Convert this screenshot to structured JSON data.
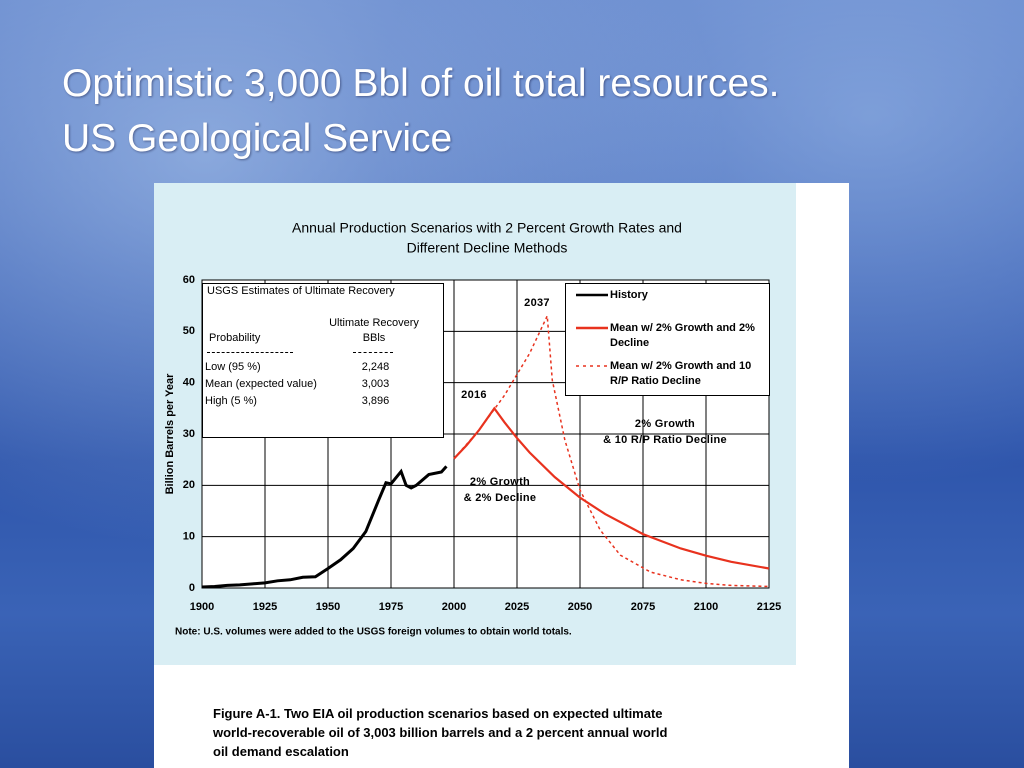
{
  "slide": {
    "title": [
      "Optimistic 3,000 Bbl of oil total resources.",
      "US Geological Service"
    ],
    "caption": [
      "Figure A-1.  Two EIA oil production scenarios based on expected ultimate",
      "world-recoverable oil of 3,003 billion barrels and a 2 percent annual world",
      "oil demand escalation"
    ]
  },
  "chart_data": {
    "type": "line",
    "title": [
      "Annual Production Scenarios with 2 Percent Growth Rates and",
      "Different Decline Methods"
    ],
    "y_label": "Billion Barrels per Year",
    "note": "Note:  U.S. volumes were added to the USGS foreign volumes to obtain world totals.",
    "xlim": [
      1900,
      2125
    ],
    "xticks": [
      1900,
      1925,
      1950,
      1975,
      2000,
      2025,
      2050,
      2075,
      2100,
      2125
    ],
    "ylim": [
      0,
      60
    ],
    "yticks": [
      0,
      10,
      20,
      30,
      40,
      50,
      60
    ],
    "grid": true,
    "series": [
      {
        "name": "History",
        "color": "#000000",
        "style": "solid",
        "x": [
          1900,
          1905,
          1910,
          1915,
          1920,
          1925,
          1930,
          1935,
          1940,
          1945,
          1950,
          1955,
          1960,
          1965,
          1970,
          1973,
          1975,
          1979,
          1981,
          1983,
          1985,
          1990,
          1995,
          1997
        ],
        "values": [
          0.2,
          0.3,
          0.5,
          0.6,
          0.8,
          1.0,
          1.4,
          1.6,
          2.1,
          2.2,
          3.8,
          5.5,
          7.7,
          11,
          17,
          20.5,
          20.3,
          22.7,
          20,
          19.5,
          20,
          22.1,
          22.6,
          23.7
        ]
      },
      {
        "name": "Mean w/ 2% Growth and 2% Decline",
        "color": "#e8321e",
        "style": "solid",
        "x": [
          2000,
          2005,
          2010,
          2016,
          2020,
          2025,
          2030,
          2040,
          2050,
          2060,
          2075,
          2090,
          2100,
          2110,
          2125
        ],
        "values": [
          25.2,
          27.8,
          30.8,
          35,
          32.3,
          29.2,
          26.4,
          21.6,
          17.6,
          14.4,
          10.5,
          7.7,
          6.3,
          5.1,
          3.8
        ]
      },
      {
        "name": "Mean w/ 2% Growth and 10 R/P Ratio Decline",
        "color": "#e8321e",
        "style": "dashed",
        "x": [
          2000,
          2010,
          2020,
          2030,
          2037,
          2039,
          2044,
          2050,
          2058,
          2066,
          2078,
          2090,
          2100,
          2110,
          2125
        ],
        "values": [
          25.2,
          30.8,
          37.5,
          45.7,
          53,
          40.5,
          28.8,
          19.1,
          11.3,
          6.4,
          3.1,
          1.6,
          0.9,
          0.5,
          0.3
        ]
      }
    ],
    "annotations": [
      [
        "2037"
      ],
      [
        "2016"
      ],
      [
        "2% Growth",
        "& 2% Decline"
      ],
      [
        "2% Growth",
        "& 10 R/P Ratio Decline"
      ]
    ],
    "inset_table": {
      "title": "USGS Estimates of Ultimate Recovery",
      "header": [
        "Probability",
        "Ultimate Recovery",
        "BBls"
      ],
      "rows": [
        [
          "Low (95 %)",
          "2,248"
        ],
        [
          "Mean (expected value)",
          "3,003"
        ],
        [
          "High (5 %)",
          "3,896"
        ]
      ]
    }
  }
}
